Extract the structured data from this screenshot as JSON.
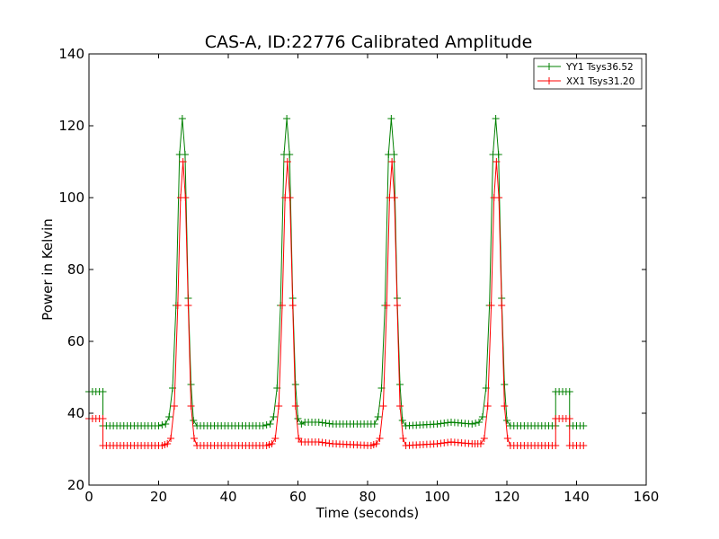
{
  "chart_data": {
    "type": "line",
    "title": "CAS-A, ID:22776 Calibrated Amplitude",
    "xlabel": "Time (seconds)",
    "ylabel": "Power in Kelvin",
    "xlim": [
      0,
      160
    ],
    "ylim": [
      20,
      140
    ],
    "xticks": [
      "0",
      "20",
      "40",
      "60",
      "80",
      "100",
      "120",
      "140",
      "160"
    ],
    "yticks": [
      "20",
      "40",
      "60",
      "80",
      "100",
      "120",
      "140"
    ],
    "grid": false,
    "legend_position": "top-right",
    "marker": "+",
    "series": [
      {
        "name": "YY1 Tsys36.52",
        "color": "#008000",
        "points": [
          [
            0,
            46
          ],
          [
            4,
            46
          ],
          [
            4,
            36.5
          ],
          [
            20,
            36.5
          ],
          [
            22,
            37
          ],
          [
            23,
            39
          ],
          [
            24,
            47
          ],
          [
            25,
            70
          ],
          [
            26,
            112
          ],
          [
            26.8,
            122
          ],
          [
            27.6,
            112
          ],
          [
            28.5,
            72
          ],
          [
            29.3,
            48
          ],
          [
            30,
            38
          ],
          [
            31,
            36.5
          ],
          [
            50,
            36.5
          ],
          [
            52,
            37
          ],
          [
            53,
            39
          ],
          [
            54,
            47
          ],
          [
            55,
            70
          ],
          [
            56,
            112
          ],
          [
            56.8,
            122
          ],
          [
            57.6,
            112
          ],
          [
            58.5,
            72
          ],
          [
            59.3,
            48
          ],
          [
            60,
            38.5
          ],
          [
            61,
            37
          ],
          [
            62,
            37.5
          ],
          [
            66,
            37.5
          ],
          [
            70,
            37
          ],
          [
            80,
            37
          ],
          [
            82,
            37
          ],
          [
            83,
            39
          ],
          [
            84,
            47
          ],
          [
            85,
            70
          ],
          [
            86,
            112
          ],
          [
            86.8,
            122
          ],
          [
            87.6,
            112
          ],
          [
            88.5,
            72
          ],
          [
            89.3,
            48
          ],
          [
            90,
            38
          ],
          [
            91,
            36.5
          ],
          [
            100,
            37
          ],
          [
            104,
            37.5
          ],
          [
            110,
            37
          ],
          [
            112,
            37.5
          ],
          [
            113,
            39
          ],
          [
            114,
            47
          ],
          [
            115,
            70
          ],
          [
            116,
            112
          ],
          [
            116.8,
            122
          ],
          [
            117.6,
            112
          ],
          [
            118.5,
            72
          ],
          [
            119.3,
            48
          ],
          [
            120,
            38
          ],
          [
            121,
            36.5
          ],
          [
            134,
            36.5
          ],
          [
            134,
            46
          ],
          [
            138,
            46
          ],
          [
            138,
            36.5
          ],
          [
            142,
            36.5
          ]
        ]
      },
      {
        "name": "XX1 Tsys31.20",
        "color": "#ff0000",
        "points": [
          [
            0,
            38.5
          ],
          [
            4,
            38.5
          ],
          [
            4,
            31
          ],
          [
            21,
            31
          ],
          [
            22.5,
            31.5
          ],
          [
            23.5,
            33
          ],
          [
            24.5,
            42
          ],
          [
            25.5,
            70
          ],
          [
            26.3,
            100
          ],
          [
            27,
            110
          ],
          [
            27.7,
            100
          ],
          [
            28.5,
            70
          ],
          [
            29.3,
            42
          ],
          [
            30.2,
            33
          ],
          [
            31,
            31
          ],
          [
            51,
            31
          ],
          [
            52.5,
            31.5
          ],
          [
            53.5,
            33
          ],
          [
            54.5,
            42
          ],
          [
            55.5,
            70
          ],
          [
            56.3,
            100
          ],
          [
            57,
            110
          ],
          [
            57.7,
            100
          ],
          [
            58.5,
            70
          ],
          [
            59.3,
            42
          ],
          [
            60.2,
            33
          ],
          [
            61,
            32
          ],
          [
            66,
            32
          ],
          [
            70,
            31.5
          ],
          [
            81,
            31
          ],
          [
            82.5,
            31.5
          ],
          [
            83.5,
            33
          ],
          [
            84.5,
            42
          ],
          [
            85.5,
            70
          ],
          [
            86.3,
            100
          ],
          [
            87,
            110
          ],
          [
            87.7,
            100
          ],
          [
            88.5,
            70
          ],
          [
            89.3,
            42
          ],
          [
            90.2,
            33
          ],
          [
            91,
            31
          ],
          [
            100,
            31.5
          ],
          [
            104,
            32
          ],
          [
            110,
            31.5
          ],
          [
            112.5,
            31.5
          ],
          [
            113.5,
            33
          ],
          [
            114.5,
            42
          ],
          [
            115.5,
            70
          ],
          [
            116.3,
            100
          ],
          [
            117,
            110
          ],
          [
            117.7,
            100
          ],
          [
            118.5,
            70
          ],
          [
            119.3,
            42
          ],
          [
            120.2,
            33
          ],
          [
            121,
            31
          ],
          [
            134,
            31
          ],
          [
            134,
            38.5
          ],
          [
            138,
            38.5
          ],
          [
            138,
            31
          ],
          [
            142,
            31
          ]
        ]
      }
    ]
  }
}
